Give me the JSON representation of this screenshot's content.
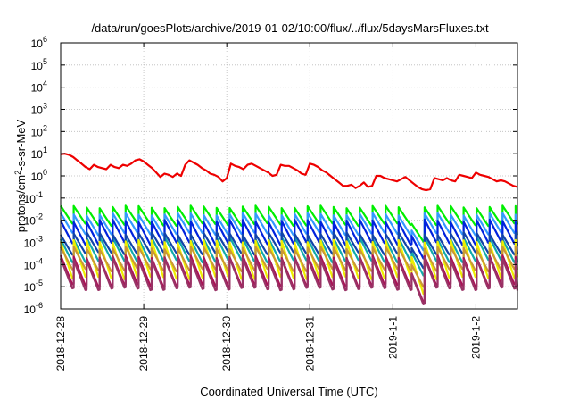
{
  "chart_data": {
    "type": "line",
    "title": "/data/run/goesPlots/archive/2019-01-02/10:00/flux/../flux/5daysMarsFluxes.txt",
    "xlabel": "Coordinated Universal Time (UTC)",
    "ylabel": "protons/cm²-s-sr-MeV",
    "xlim": [
      0,
      5.5
    ],
    "ylim": [
      -6,
      6
    ],
    "y_scale": "log",
    "grid": true,
    "x_ticks": [
      {
        "pos": 0,
        "label": "2018-12-28"
      },
      {
        "pos": 1,
        "label": "2018-12-29"
      },
      {
        "pos": 2,
        "label": "2018-12-30"
      },
      {
        "pos": 3,
        "label": "2018-12-31"
      },
      {
        "pos": 4,
        "label": "2019-1-1"
      },
      {
        "pos": 5,
        "label": "2019-1-2"
      }
    ],
    "y_ticks": [
      {
        "exp": -6,
        "label": "10",
        "sup": "-6"
      },
      {
        "exp": -5,
        "label": "10",
        "sup": "-5"
      },
      {
        "exp": -4,
        "label": "10",
        "sup": "-4"
      },
      {
        "exp": -3,
        "label": "10",
        "sup": "-3"
      },
      {
        "exp": -2,
        "label": "10",
        "sup": "-2"
      },
      {
        "exp": -1,
        "label": "10",
        "sup": "-1"
      },
      {
        "exp": 0,
        "label": "10",
        "sup": "0"
      },
      {
        "exp": 1,
        "label": "10",
        "sup": "1"
      },
      {
        "exp": 2,
        "label": "10",
        "sup": "2"
      },
      {
        "exp": 3,
        "label": "10",
        "sup": "3"
      },
      {
        "exp": 4,
        "label": "10",
        "sup": "4"
      },
      {
        "exp": 5,
        "label": "10",
        "sup": "5"
      },
      {
        "exp": 6,
        "label": "10",
        "sup": "6"
      }
    ],
    "series": [
      {
        "color": "#ee0000",
        "style": "smooth",
        "x": [
          0.0,
          0.05,
          0.1,
          0.15,
          0.2,
          0.25,
          0.3,
          0.35,
          0.4,
          0.45,
          0.5,
          0.55,
          0.6,
          0.65,
          0.7,
          0.75,
          0.8,
          0.85,
          0.9,
          0.95,
          1.0,
          1.05,
          1.1,
          1.15,
          1.2,
          1.25,
          1.3,
          1.35,
          1.4,
          1.45,
          1.5,
          1.55,
          1.6,
          1.65,
          1.7,
          1.75,
          1.8,
          1.85,
          1.9,
          1.95,
          2.0,
          2.05,
          2.1,
          2.15,
          2.2,
          2.25,
          2.3,
          2.35,
          2.4,
          2.45,
          2.5,
          2.55,
          2.6,
          2.65,
          2.7,
          2.75,
          2.8,
          2.85,
          2.9,
          2.95,
          3.0,
          3.05,
          3.1,
          3.15,
          3.2,
          3.25,
          3.3,
          3.35,
          3.4,
          3.45,
          3.5,
          3.55,
          3.6,
          3.65,
          3.7,
          3.75,
          3.8,
          3.85,
          3.9,
          3.95,
          4.0,
          4.05,
          4.1,
          4.15,
          4.2,
          4.25,
          4.3,
          4.35,
          4.4,
          4.45,
          4.5,
          4.55,
          4.6,
          4.65,
          4.7,
          4.75,
          4.8,
          4.85,
          4.9,
          4.95,
          5.0,
          5.05,
          5.1,
          5.15,
          5.2,
          5.25,
          5.3,
          5.35,
          5.4,
          5.45,
          5.5
        ],
        "y": [
          0.98,
          1.0,
          0.95,
          0.85,
          0.7,
          0.55,
          0.4,
          0.3,
          0.5,
          0.4,
          0.35,
          0.3,
          0.5,
          0.4,
          0.35,
          0.5,
          0.45,
          0.55,
          0.7,
          0.75,
          0.65,
          0.5,
          0.35,
          0.15,
          -0.05,
          0.1,
          0.05,
          -0.05,
          0.1,
          0.0,
          0.5,
          0.7,
          0.6,
          0.5,
          0.35,
          0.25,
          0.1,
          0.05,
          -0.05,
          -0.25,
          -0.1,
          0.55,
          0.45,
          0.4,
          0.3,
          0.5,
          0.55,
          0.45,
          0.35,
          0.25,
          0.15,
          0.0,
          0.05,
          0.5,
          0.45,
          0.45,
          0.35,
          0.25,
          0.1,
          0.05,
          0.55,
          0.5,
          0.4,
          0.25,
          0.15,
          0.0,
          -0.15,
          -0.3,
          -0.45,
          -0.45,
          -0.4,
          -0.55,
          -0.45,
          -0.3,
          -0.5,
          -0.45,
          0.0,
          0.0,
          -0.1,
          -0.15,
          -0.2,
          -0.25,
          -0.15,
          -0.05,
          -0.2,
          -0.35,
          -0.5,
          -0.6,
          -0.65,
          -0.6,
          -0.1,
          -0.15,
          -0.2,
          -0.1,
          -0.2,
          -0.25,
          0.05,
          0.0,
          -0.05,
          -0.1,
          0.15,
          0.05,
          0.0,
          -0.05,
          -0.15,
          -0.25,
          -0.2,
          -0.25,
          -0.35,
          -0.45,
          -0.5
        ]
      },
      {
        "color": "#00ee00",
        "style": "sawtooth",
        "period": 0.1565,
        "start": -1.45,
        "end": -2.2
      },
      {
        "color": "#3399ff",
        "style": "sawtooth",
        "period": 0.1565,
        "start": -1.78,
        "end": -2.62
      },
      {
        "color": "#0022dd",
        "style": "sawtooth",
        "period": 0.1565,
        "start": -2.08,
        "end": -3.05
      },
      {
        "color": "#11aaaa",
        "style": "sawtooth",
        "period": 0.1565,
        "start": -2.85,
        "end": -3.85
      },
      {
        "color": "#1144aa",
        "style": "sawtooth",
        "period": 0.1565,
        "start": -2.65,
        "end": -3.5
      },
      {
        "color": "#eeee00",
        "style": "sawtooth",
        "period": 0.1565,
        "start": -3.0,
        "end": -4.6
      },
      {
        "color": "#cc9933",
        "style": "sawtooth",
        "period": 0.1565,
        "start": -3.3,
        "end": -4.25
      },
      {
        "color": "#aa1155",
        "style": "sawtooth",
        "period": 0.1565,
        "start": -3.7,
        "end": -4.95
      },
      {
        "color": "#993366",
        "style": "sawtooth",
        "period": 0.1565,
        "start": -3.8,
        "end": -5.1
      }
    ],
    "dip": {
      "from": 4.17,
      "to": 4.3,
      "depth": 0.7
    }
  }
}
